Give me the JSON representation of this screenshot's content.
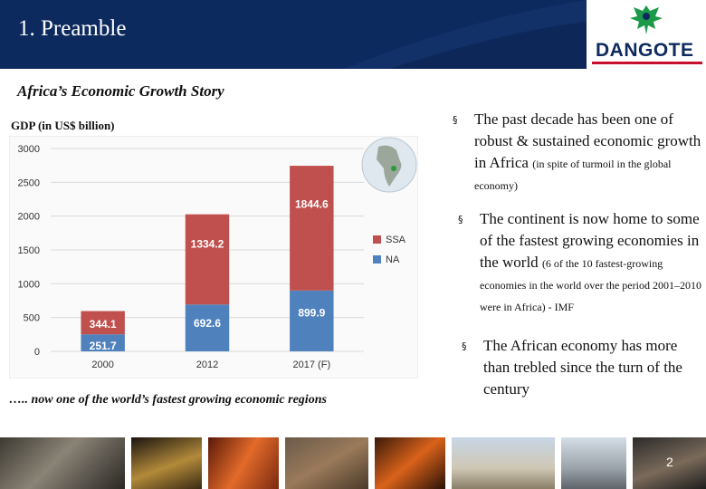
{
  "header": {
    "title": "1. Preamble"
  },
  "logo": {
    "brand": "DANGOTE",
    "icon": "eagle-emblem-icon"
  },
  "subtitle": "Africa’s Economic Growth Story",
  "gdp_label": "GDP (in US$ billion)",
  "caption": "….. now one of the world’s fastest growing economic regions",
  "chart_data": {
    "type": "bar",
    "stacked": true,
    "categories": [
      "2000",
      "2012",
      "2017 (F)"
    ],
    "series": [
      {
        "name": "SSA",
        "values": [
          344.1,
          1334.2,
          1844.6
        ],
        "color": "#c0504d"
      },
      {
        "name": "NA",
        "values": [
          251.7,
          692.6,
          899.9
        ],
        "color": "#4f81bd"
      }
    ],
    "ylim": [
      0,
      3000
    ],
    "yticks": [
      "0",
      "500",
      "1000",
      "1500",
      "2000",
      "2500",
      "3000"
    ],
    "grid": true,
    "legend": "right",
    "inset": "africa-globe-icon"
  },
  "bullets": [
    {
      "main": "The past decade has been one of robust & sustained economic growth in Africa",
      "note": "(in spite of turmoil in the global economy)"
    },
    {
      "main": "The continent is now home to some of the fastest growing economies in the world",
      "note": "(6 of the 10 fastest-growing economies in the world over the period 2001–2010 were in Africa) - IMF"
    },
    {
      "main": "The African economy has more than trebled since the turn of the century",
      "note": ""
    }
  ],
  "bullet_marker": "§",
  "photos": [
    "warehouse-photo",
    "factory-night-photo",
    "molten-metal-photo",
    "rail-cargo-photo",
    "steel-plant-photo",
    "silo-complex-photo",
    "building-site-photo",
    "worker-photo"
  ],
  "page_number": "2"
}
